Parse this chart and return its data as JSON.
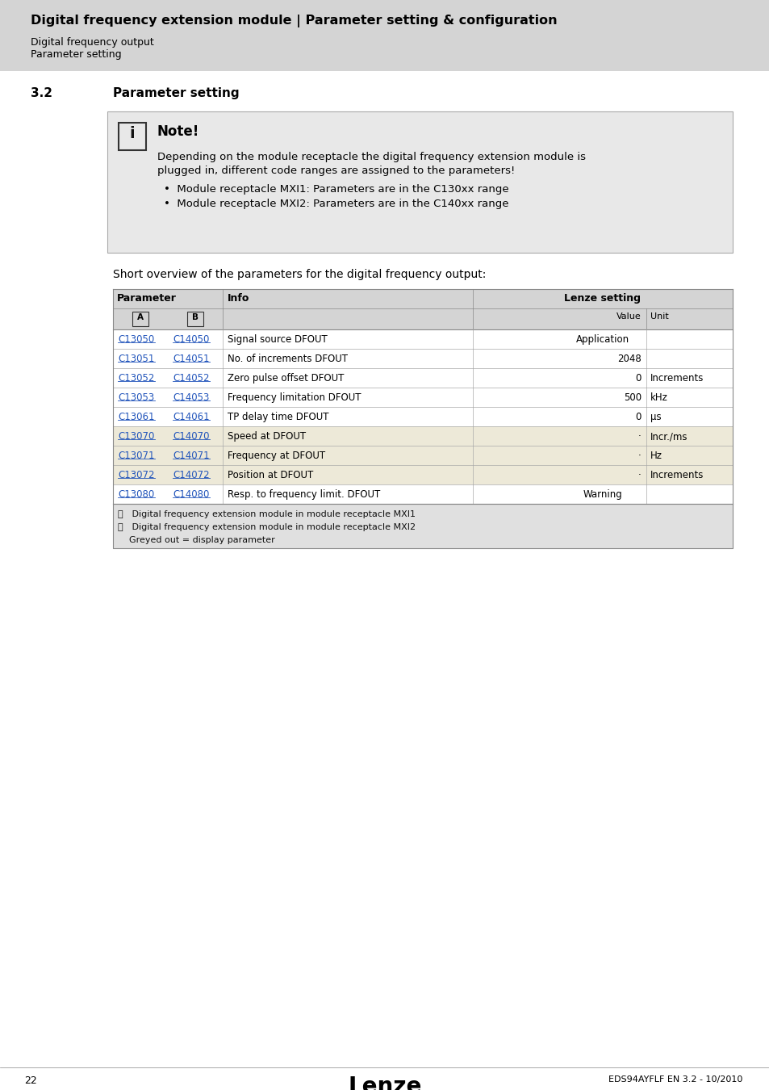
{
  "page_bg": "#ffffff",
  "header_bg": "#d4d4d4",
  "header_title": "Digital frequency extension module | Parameter setting & configuration",
  "header_sub1": "Digital frequency output",
  "header_sub2": "Parameter setting",
  "section_num": "3.2",
  "section_title": "Parameter setting",
  "note_title": "Note!",
  "note_bg": "#e8e8e8",
  "note_lines": [
    "Depending on the module receptacle the digital frequency extension module is",
    "plugged in, different code ranges are assigned to the parameters!",
    "•  Module receptacle MXI1: Parameters are in the C130xx range",
    "•  Module receptacle MXI2: Parameters are in the C140xx range"
  ],
  "table_intro": "Short overview of the parameters for the digital frequency output:",
  "table_header_col1": "Parameter",
  "table_header_col2": "Info",
  "table_header_col3": "Lenze setting",
  "table_subheader_a": "A",
  "table_subheader_b": "B",
  "table_subheader_value": "Value",
  "table_subheader_unit": "Unit",
  "table_header_bg": "#d4d4d4",
  "table_alt_bg": "#ede9d8",
  "table_rows": [
    {
      "a": "C13050",
      "b": "C14050",
      "info": "Signal source DFOUT",
      "value": "Application",
      "unit": "",
      "bg": "#ffffff",
      "value_span": true
    },
    {
      "a": "C13051",
      "b": "C14051",
      "info": "No. of increments DFOUT",
      "value": "2048",
      "unit": "",
      "bg": "#ffffff",
      "value_span": false
    },
    {
      "a": "C13052",
      "b": "C14052",
      "info": "Zero pulse offset DFOUT",
      "value": "0",
      "unit": "Increments",
      "bg": "#ffffff",
      "value_span": false
    },
    {
      "a": "C13053",
      "b": "C14053",
      "info": "Frequency limitation DFOUT",
      "value": "500",
      "unit": "kHz",
      "bg": "#ffffff",
      "value_span": false
    },
    {
      "a": "C13061",
      "b": "C14061",
      "info": "TP delay time DFOUT",
      "value": "0",
      "unit": "μs",
      "bg": "#ffffff",
      "value_span": false
    },
    {
      "a": "C13070",
      "b": "C14070",
      "info": "Speed at DFOUT",
      "value": "·",
      "unit": "Incr./ms",
      "bg": "#ede9d8",
      "value_span": false
    },
    {
      "a": "C13071",
      "b": "C14071",
      "info": "Frequency at DFOUT",
      "value": "·",
      "unit": "Hz",
      "bg": "#ede9d8",
      "value_span": false
    },
    {
      "a": "C13072",
      "b": "C14072",
      "info": "Position at DFOUT",
      "value": "·",
      "unit": "Increments",
      "bg": "#ede9d8",
      "value_span": false
    },
    {
      "a": "C13080",
      "b": "C14080",
      "info": "Resp. to frequency limit. DFOUT",
      "value": "Warning",
      "unit": "",
      "bg": "#ffffff",
      "value_span": true
    }
  ],
  "table_footnotes": [
    [
      "Ⓐ",
      " Digital frequency extension module in module receptacle MXI1"
    ],
    [
      "Ⓑ",
      " Digital frequency extension module in module receptacle MXI2"
    ],
    [
      "",
      "Greyed out = display parameter"
    ]
  ],
  "link_color": "#2255bb",
  "page_number": "22",
  "footer_brand": "Lenze",
  "footer_ref": "EDS94AYFLF EN 3.2 - 10/2010"
}
